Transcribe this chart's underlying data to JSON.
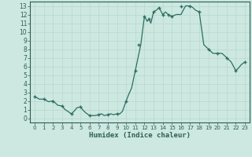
{
  "xlabel": "Humidex (Indice chaleur)",
  "background_color": "#cce8e0",
  "line_color": "#2d6e63",
  "marker_color": "#2d6e63",
  "xlim": [
    -0.5,
    23.5
  ],
  "ylim": [
    -0.5,
    13.5
  ],
  "yticks": [
    0,
    1,
    2,
    3,
    4,
    5,
    6,
    7,
    8,
    9,
    10,
    11,
    12,
    13
  ],
  "xtick_labels": [
    "0",
    "1",
    "2",
    "3",
    "4",
    "5",
    "6",
    "7",
    "8",
    "9",
    "10",
    "11",
    "12",
    "13",
    "14",
    "15",
    "16",
    "17",
    "18",
    "19",
    "20",
    "21",
    "22",
    "23"
  ],
  "x": [
    0,
    0.5,
    1,
    1.5,
    2,
    2.5,
    3,
    3.3,
    3.6,
    4,
    4.3,
    4.6,
    5,
    5.3,
    5.6,
    6,
    6.3,
    6.6,
    7,
    7.3,
    7.6,
    8,
    8.3,
    8.6,
    9,
    9.3,
    9.6,
    10,
    10.3,
    10.6,
    11,
    11.2,
    11.4,
    11.6,
    12,
    12.3,
    12.5,
    12.7,
    13,
    13.3,
    13.6,
    14,
    14.3,
    14.6,
    15,
    15.5,
    16,
    16.5,
    17,
    17.3,
    17.6,
    18,
    18.5,
    19,
    19.5,
    20,
    20.5,
    21,
    21.5,
    22,
    22.3,
    22.6,
    23
  ],
  "y": [
    2.5,
    2.2,
    2.2,
    1.9,
    2.0,
    1.5,
    1.4,
    1.0,
    0.8,
    0.5,
    0.8,
    1.2,
    1.3,
    0.9,
    0.6,
    0.3,
    0.3,
    0.3,
    0.4,
    0.5,
    0.3,
    0.4,
    0.5,
    0.4,
    0.5,
    0.5,
    0.8,
    2.0,
    2.8,
    3.5,
    5.5,
    6.5,
    7.5,
    8.5,
    11.8,
    11.2,
    11.5,
    11.0,
    12.3,
    12.5,
    12.8,
    12.0,
    12.3,
    12.0,
    11.8,
    12.0,
    12.0,
    13.0,
    13.0,
    12.8,
    12.5,
    12.3,
    8.5,
    8.0,
    7.5,
    7.5,
    7.5,
    7.0,
    6.5,
    5.5,
    5.8,
    6.2,
    6.5
  ],
  "marker_x": [
    0,
    1,
    2,
    3,
    4,
    5,
    6,
    7,
    8,
    9,
    10,
    11,
    11.4,
    12,
    12.5,
    13,
    13.6,
    14,
    14.6,
    15,
    16,
    17,
    18,
    19,
    20,
    21,
    22,
    23
  ],
  "marker_y": [
    2.5,
    2.2,
    2.0,
    1.4,
    0.5,
    1.3,
    0.3,
    0.4,
    0.4,
    0.5,
    2.0,
    5.5,
    8.5,
    11.8,
    11.5,
    12.3,
    12.8,
    12.0,
    12.0,
    11.8,
    13.0,
    13.0,
    12.3,
    8.0,
    7.5,
    7.0,
    5.5,
    6.5
  ],
  "grid_color": "#b8d8d0",
  "font_color": "#2d5e55",
  "grid_minor_color": "#cce8e0"
}
